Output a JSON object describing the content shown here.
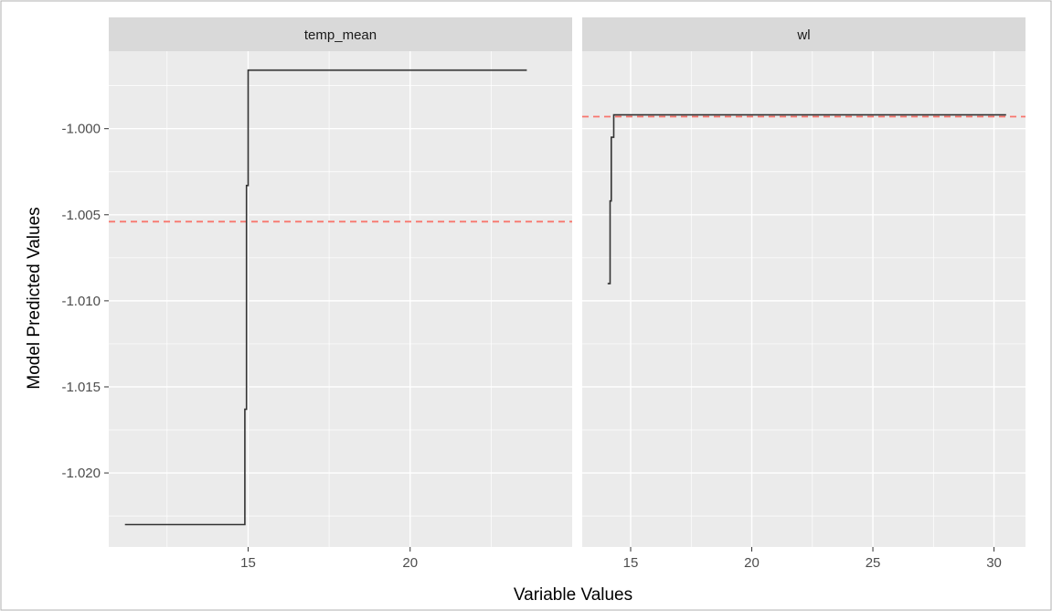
{
  "chart_data": {
    "type": "line",
    "xlabel": "Variable Values",
    "ylabel": "Model Predicted Values",
    "ylim": [
      -1.0243,
      -0.9955
    ],
    "yticks": [
      -1.02,
      -1.015,
      -1.01,
      -1.005,
      -1.0
    ],
    "ytick_labels": [
      "-1.020",
      "-1.015",
      "-1.010",
      "-1.005",
      "-1.000"
    ],
    "grid": true,
    "colors": {
      "panel_bg": "#ebebeb",
      "strip_bg": "#d9d9d9",
      "grid": "#ffffff",
      "line": "#333333",
      "reference_line": "#f8766d",
      "frame": "#b0b0b0"
    },
    "panels": [
      {
        "strip": "temp_mean",
        "xlim": [
          10.7,
          25.0
        ],
        "xticks": [
          15,
          20
        ],
        "xtick_labels": [
          "15",
          "20"
        ],
        "series": {
          "x": [
            11.2,
            14.9,
            14.9,
            14.95,
            14.95,
            15.0,
            15.0,
            23.6
          ],
          "y": [
            -1.023,
            -1.023,
            -1.0163,
            -1.0163,
            -1.0033,
            -1.0033,
            -0.9966,
            -0.9966
          ]
        },
        "reference_line": -1.0054
      },
      {
        "strip": "wl",
        "xlim": [
          13.0,
          31.3
        ],
        "xticks": [
          15,
          20,
          25,
          30
        ],
        "xtick_labels": [
          "15",
          "20",
          "25",
          "30"
        ],
        "series": {
          "x": [
            14.05,
            14.15,
            14.15,
            14.2,
            14.2,
            14.3,
            14.3,
            30.5
          ],
          "y": [
            -1.009,
            -1.009,
            -1.0042,
            -1.0042,
            -1.0005,
            -1.0005,
            -0.9992,
            -0.9992
          ]
        },
        "reference_line": -0.9993
      }
    ]
  }
}
